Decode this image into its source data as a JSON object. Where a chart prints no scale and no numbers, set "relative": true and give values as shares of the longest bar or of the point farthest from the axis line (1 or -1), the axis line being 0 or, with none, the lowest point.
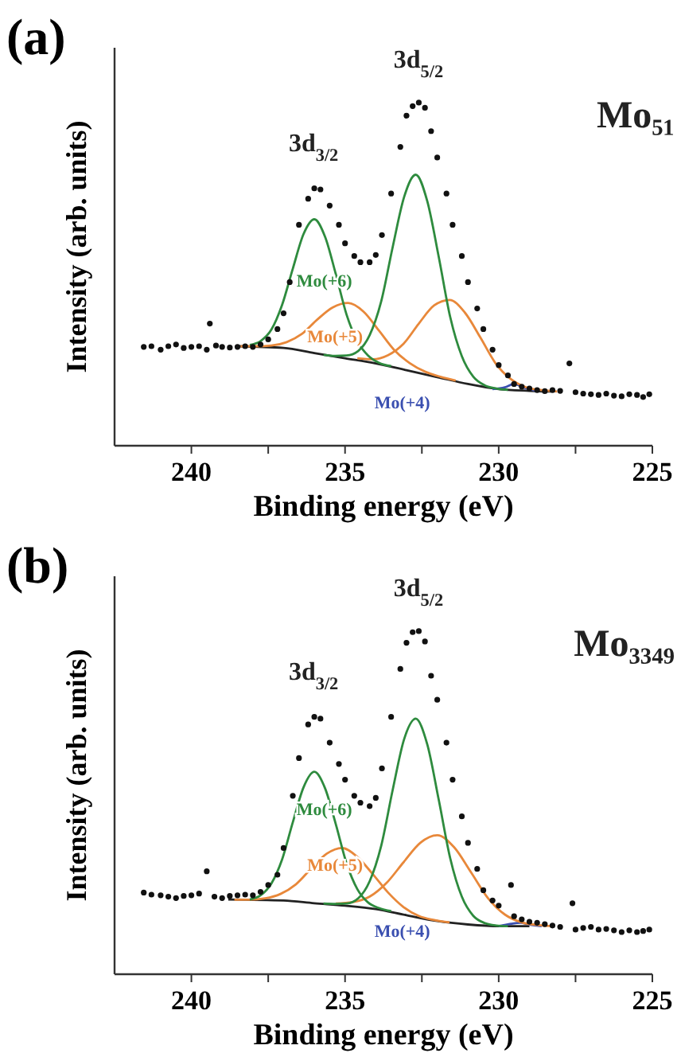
{
  "chart_data": [
    {
      "type": "line",
      "title": "(a)",
      "xlabel": "Binding energy (eV)",
      "ylabel": "Intensity (arb. units)",
      "relative": true,
      "xlim": [
        242.5,
        225
      ],
      "xticks": [
        240,
        {
          "value": 237.5,
          "label": null
        },
        235,
        {
          "value": 232.5,
          "label": null
        },
        230,
        {
          "value": 227.5,
          "label": null
        },
        225
      ],
      "annotations": [
        "Mo₅₁",
        "3d$_{3/2}$",
        "3d$_{5/2}$",
        "Mo(+6)",
        "Mo(+5)",
        "Mo(+4)"
      ],
      "series": [
        {
          "type": "line",
          "marker": "none",
          "color": "#222222",
          "x": [
            238.5,
            237,
            236,
            235,
            234,
            233,
            232,
            231,
            230,
            229,
            228.3
          ],
          "values": [
            0.29,
            0.285,
            0.27,
            0.255,
            0.24,
            0.22,
            0.2,
            0.18,
            0.165,
            0.16,
            0.158
          ]
        },
        {
          "type": "line",
          "marker": "none",
          "color": "#3a4fb0",
          "x": [
            230.2,
            229.8,
            229.5,
            229.2,
            228.8
          ],
          "values": [
            0.165,
            0.17,
            0.18,
            0.17,
            0.16
          ]
        },
        {
          "type": "line",
          "marker": "none",
          "color": "#e8883a",
          "x": [
            238.4,
            237.9,
            237.4,
            236.9,
            236.4,
            235.9,
            235.4,
            234.9,
            234.4,
            233.9,
            233.4,
            232.9,
            232.4,
            231.9,
            231.4
          ],
          "values": [
            0.29,
            0.29,
            0.292,
            0.302,
            0.326,
            0.368,
            0.403,
            0.416,
            0.391,
            0.336,
            0.279,
            0.241,
            0.216,
            0.201,
            0.19
          ]
        },
        {
          "type": "line",
          "marker": "none",
          "color": "#e8883a",
          "x": [
            234.6,
            234.1,
            233.6,
            233.1,
            232.6,
            232.1,
            231.6,
            231.1,
            230.6,
            230.1,
            229.6,
            229.1,
            228.6,
            228.1
          ],
          "values": [
            0.255,
            0.252,
            0.264,
            0.297,
            0.356,
            0.409,
            0.425,
            0.388,
            0.316,
            0.24,
            0.194,
            0.17,
            0.162,
            0.158
          ]
        },
        {
          "type": "line",
          "marker": "none",
          "color": "#2e8b3e",
          "x": [
            238.1,
            237.75,
            237.4,
            237.05,
            236.7,
            236.35,
            236,
            235.65,
            235.3,
            234.95,
            234.6,
            234.25,
            233.9,
            233.5
          ],
          "values": [
            0.294,
            0.305,
            0.338,
            0.41,
            0.516,
            0.617,
            0.66,
            0.609,
            0.5,
            0.382,
            0.305,
            0.263,
            0.242,
            0.232
          ]
        },
        {
          "type": "line",
          "marker": "none",
          "color": "#2e8b3e",
          "x": [
            235.7,
            235.325,
            234.95,
            234.575,
            234.2,
            233.825,
            233.45,
            233.075,
            232.7,
            232.325,
            231.95,
            231.575,
            231.2,
            230.825,
            230.45,
            230.075,
            229.7
          ],
          "values": [
            0.265,
            0.262,
            0.263,
            0.276,
            0.322,
            0.42,
            0.579,
            0.726,
            0.79,
            0.713,
            0.55,
            0.374,
            0.261,
            0.201,
            0.176,
            0.167,
            0.163
          ]
        },
        {
          "type": "scatter",
          "marker": "circle",
          "color": "#111111",
          "x": [
            241.55,
            241.3,
            241,
            240.75,
            240.5,
            240.25,
            240,
            239.75,
            239.5,
            239.4,
            239.2,
            239,
            238.75,
            238.5,
            238.25,
            238,
            237.75,
            237.5,
            237.2,
            237,
            236.8,
            236.5,
            236.2,
            236,
            235.8,
            235.5,
            235.2,
            235,
            234.7,
            234.5,
            234.2,
            234,
            233.8,
            233.5,
            233.2,
            233,
            232.8,
            232.6,
            232.4,
            232.2,
            232,
            231.7,
            231.5,
            231.2,
            231,
            230.7,
            230.5,
            230.2,
            230,
            229.7,
            229.5,
            229.25,
            229,
            228.75,
            228.5,
            228.25,
            228,
            227.7,
            227.5,
            227.25,
            227,
            226.75,
            226.5,
            226.25,
            226,
            225.75,
            225.5,
            225.3,
            225.1
          ],
          "values": [
            0.288,
            0.29,
            0.28,
            0.29,
            0.295,
            0.285,
            0.288,
            0.29,
            0.28,
            0.356,
            0.292,
            0.288,
            0.286,
            0.288,
            0.29,
            0.288,
            0.295,
            0.31,
            0.34,
            0.386,
            0.477,
            0.644,
            0.72,
            0.75,
            0.747,
            0.7,
            0.644,
            0.59,
            0.553,
            0.535,
            0.535,
            0.556,
            0.614,
            0.735,
            0.871,
            0.962,
            0.99,
            1,
            0.985,
            0.917,
            0.84,
            0.735,
            0.644,
            0.553,
            0.477,
            0.4,
            0.34,
            0.28,
            0.235,
            0.205,
            0.18,
            0.172,
            0.167,
            0.162,
            0.159,
            0.162,
            0.16,
            0.24,
            0.156,
            0.152,
            0.15,
            0.148,
            0.152,
            0.146,
            0.144,
            0.15,
            0.148,
            0.142,
            0.15
          ]
        }
      ]
    },
    {
      "type": "line",
      "title": "(b)",
      "xlabel": "Binding energy (eV)",
      "ylabel": "Intensity (arb. units)",
      "relative": true,
      "xlim": [
        242.5,
        225
      ],
      "xticks": [
        240,
        {
          "value": 237.5,
          "label": null
        },
        235,
        {
          "value": 232.5,
          "label": null
        },
        230,
        {
          "value": 227.5,
          "label": null
        },
        225
      ],
      "annotations": [
        "Mo₃₃₄₉",
        "3d$_{3/2}$",
        "3d$_{5/2}$",
        "Mo(+6)",
        "Mo(+5)",
        "Mo(+4)"
      ],
      "series": [
        {
          "type": "line",
          "marker": "none",
          "color": "#222222",
          "x": [
            238.8,
            237,
            236,
            235,
            234,
            233,
            232,
            231,
            230,
            229
          ],
          "values": [
            0.218,
            0.215,
            0.207,
            0.2,
            0.19,
            0.172,
            0.155,
            0.145,
            0.14,
            0.14
          ]
        },
        {
          "type": "line",
          "marker": "none",
          "color": "#3a4fb0",
          "x": [
            230,
            229.6,
            229.3,
            229,
            228.6
          ],
          "values": [
            0.14,
            0.147,
            0.15,
            0.145,
            0.14
          ]
        },
        {
          "type": "line",
          "marker": "none",
          "color": "#e8883a",
          "x": [
            238.6,
            238.1,
            237.6,
            237.1,
            236.6,
            236.1,
            235.6,
            235.1,
            234.6,
            234.1,
            233.6,
            233.1,
            232.6,
            232.1,
            231.6
          ],
          "values": [
            0.217,
            0.217,
            0.221,
            0.234,
            0.262,
            0.308,
            0.351,
            0.368,
            0.342,
            0.292,
            0.238,
            0.196,
            0.17,
            0.158,
            0.151
          ]
        },
        {
          "type": "line",
          "marker": "none",
          "color": "#e8883a",
          "x": [
            235.3,
            234.75,
            234.2,
            233.65,
            233.1,
            232.55,
            232,
            231.45,
            230.9,
            230.35,
            229.8,
            229.25,
            228.7,
            228.2
          ],
          "values": [
            0.206,
            0.21,
            0.226,
            0.266,
            0.326,
            0.383,
            0.405,
            0.37,
            0.297,
            0.222,
            0.174,
            0.151,
            0.143,
            0.14
          ]
        },
        {
          "type": "line",
          "marker": "none",
          "color": "#2e8b3e",
          "x": [
            238.1,
            237.75,
            237.4,
            237.05,
            236.7,
            236.35,
            236,
            235.65,
            235.3,
            234.95,
            234.6,
            234.25,
            233.9,
            233.5
          ],
          "values": [
            0.218,
            0.23,
            0.264,
            0.334,
            0.443,
            0.545,
            0.59,
            0.542,
            0.437,
            0.323,
            0.248,
            0.209,
            0.193,
            0.184
          ]
        },
        {
          "type": "line",
          "marker": "none",
          "color": "#2e8b3e",
          "x": [
            235.7,
            235.325,
            234.95,
            234.575,
            234.2,
            233.825,
            233.45,
            233.075,
            232.7,
            232.325,
            231.95,
            231.575,
            231.2,
            230.825,
            230.45,
            230.075,
            229.7
          ],
          "values": [
            0.206,
            0.205,
            0.206,
            0.221,
            0.271,
            0.374,
            0.537,
            0.686,
            0.745,
            0.67,
            0.508,
            0.337,
            0.226,
            0.17,
            0.149,
            0.142,
            0.14
          ]
        },
        {
          "type": "scatter",
          "marker": "circle",
          "color": "#111111",
          "x": [
            241.55,
            241.3,
            241,
            240.75,
            240.5,
            240.25,
            240,
            239.75,
            239.5,
            239.25,
            239,
            238.75,
            238.5,
            238.25,
            238,
            237.75,
            237.5,
            237.2,
            237,
            236.7,
            236.5,
            236.2,
            236,
            235.8,
            235.5,
            235.2,
            235,
            234.7,
            234.5,
            234.2,
            234,
            233.8,
            233.5,
            233.2,
            233,
            232.8,
            232.6,
            232.4,
            232.2,
            232,
            231.7,
            231.5,
            231.2,
            231,
            230.7,
            230.5,
            230.2,
            230,
            229.6,
            229.5,
            229.25,
            229,
            228.75,
            228.5,
            228.25,
            228,
            227.6,
            227.5,
            227.25,
            227,
            226.75,
            226.5,
            226.25,
            226,
            225.75,
            225.5,
            225.3,
            225.1
          ],
          "values": [
            0.238,
            0.232,
            0.23,
            0.226,
            0.222,
            0.228,
            0.23,
            0.235,
            0.3,
            0.226,
            0.222,
            0.228,
            0.23,
            0.232,
            0.23,
            0.24,
            0.26,
            0.29,
            0.368,
            0.52,
            0.63,
            0.728,
            0.75,
            0.745,
            0.675,
            0.613,
            0.567,
            0.52,
            0.5,
            0.49,
            0.514,
            0.6,
            0.75,
            0.89,
            0.966,
            0.997,
            1,
            0.97,
            0.87,
            0.8,
            0.675,
            0.567,
            0.46,
            0.383,
            0.307,
            0.245,
            0.215,
            0.2,
            0.26,
            0.169,
            0.16,
            0.153,
            0.15,
            0.146,
            0.142,
            0.138,
            0.207,
            0.13,
            0.135,
            0.138,
            0.13,
            0.132,
            0.128,
            0.123,
            0.128,
            0.123,
            0.126,
            0.13
          ]
        }
      ]
    }
  ]
}
